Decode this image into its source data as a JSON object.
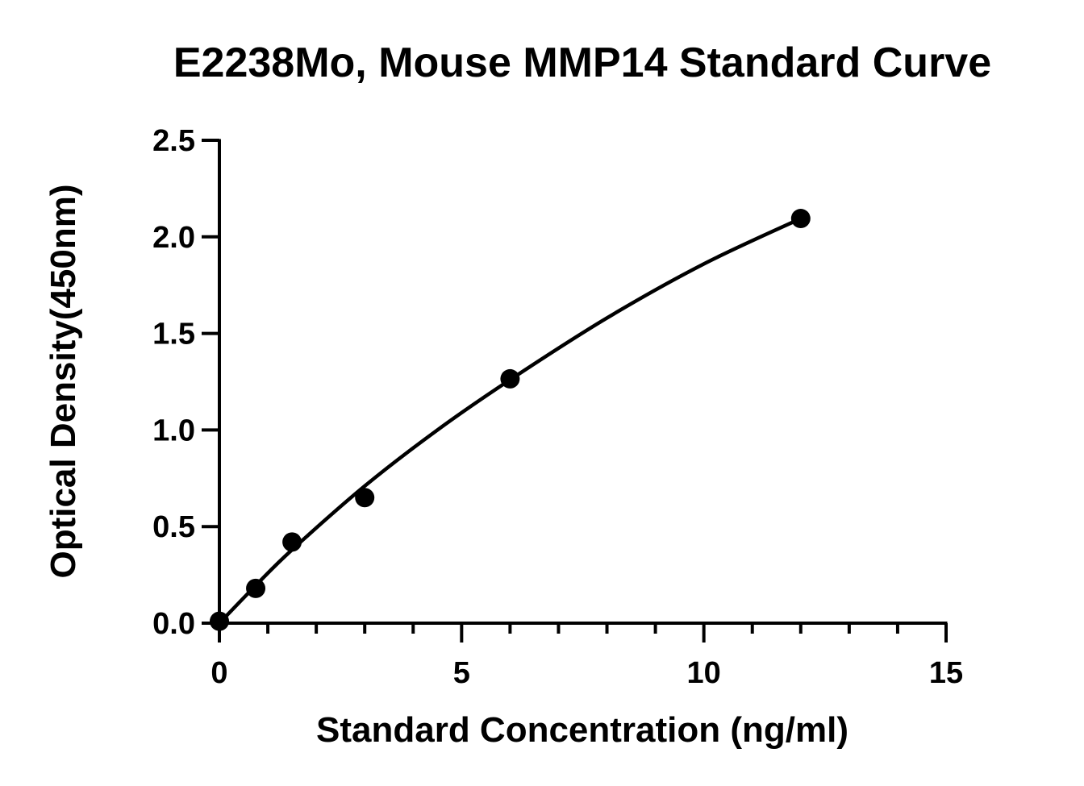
{
  "chart_data": {
    "type": "scatter",
    "title": "E2238Mo, Mouse MMP14 Standard Curve",
    "xlabel": "Standard Concentration (ng/ml)",
    "ylabel": "Optical Density(450nm)",
    "xlim": [
      0,
      15
    ],
    "ylim": [
      0,
      2.5
    ],
    "x_ticks": [
      0,
      5,
      10,
      15
    ],
    "x_tick_labels": [
      "0",
      "5",
      "10",
      "15"
    ],
    "x_minor_step": 1,
    "y_ticks": [
      0,
      0.5,
      1.0,
      1.5,
      2.0,
      2.5
    ],
    "y_tick_labels": [
      "0.0",
      "0.5",
      "1.0",
      "1.5",
      "2.0",
      "2.5"
    ],
    "grid": false,
    "legend": "none",
    "series": [
      {
        "x": [
          0,
          0.75,
          1.5,
          3,
          6,
          12
        ],
        "y": [
          0.01,
          0.18,
          0.42,
          0.65,
          1.265,
          2.095
        ]
      }
    ],
    "fit_curve": {
      "x": [
        0,
        0.75,
        1.5,
        3,
        4.5,
        6,
        8,
        10,
        12
      ],
      "y": [
        0.0,
        0.195,
        0.38,
        0.71,
        1.0,
        1.26,
        1.58,
        1.86,
        2.095
      ]
    },
    "colors": {
      "marker": "#000000",
      "line": "#000000",
      "axis": "#000000"
    }
  }
}
